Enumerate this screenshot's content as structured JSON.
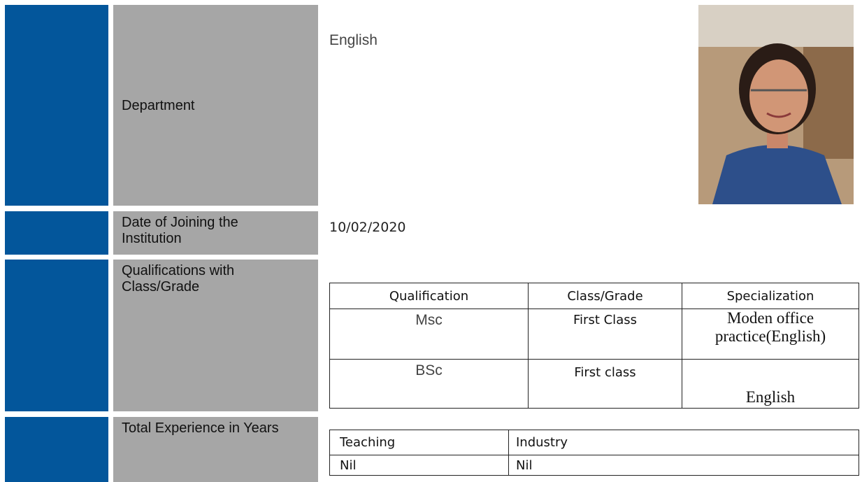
{
  "department": {
    "label": "Department",
    "value": "English"
  },
  "joining": {
    "label": "Date of Joining the Institution",
    "value": "10/02/2020"
  },
  "qualifications": {
    "label": "Qualifications with Class/Grade",
    "header": [
      "Qualification",
      "Class/Grade",
      "Specialization"
    ],
    "rows": [
      [
        "Msc",
        "First Class",
        "Moden office practice(English)"
      ],
      [
        "BSc",
        "First class",
        "English"
      ]
    ]
  },
  "experience": {
    "label": "Total Experience in Years",
    "header": [
      "Teaching",
      "Industry"
    ],
    "rows": [
      [
        "Nil",
        "Nil"
      ]
    ]
  }
}
